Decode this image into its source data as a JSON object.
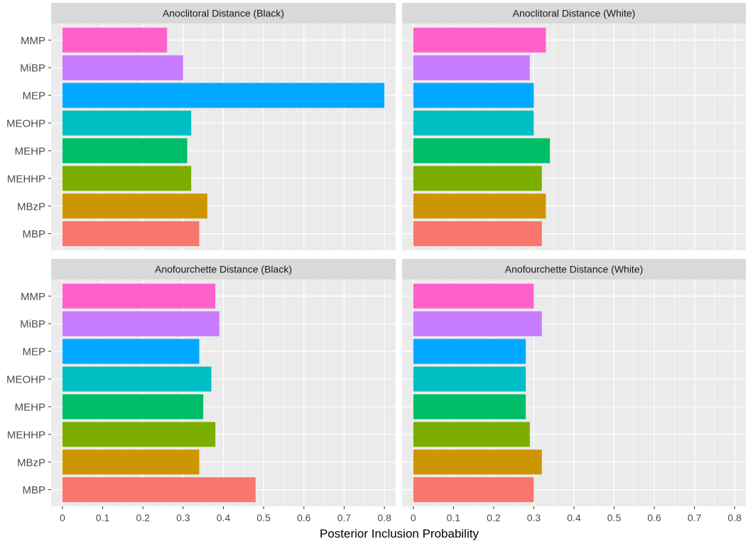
{
  "chart_data": {
    "type": "bar",
    "orientation": "horizontal",
    "xlabel": "Posterior Inclusion Probability",
    "xlim": [
      0,
      0.8
    ],
    "x_ticks": [
      "0",
      "0.1",
      "0.2",
      "0.3",
      "0.4",
      "0.5",
      "0.6",
      "0.7",
      "0.8"
    ],
    "categories": [
      "MMP",
      "MiBP",
      "MEP",
      "MEOHP",
      "MEHP",
      "MEHHP",
      "MBzP",
      "MBP"
    ],
    "category_colors": [
      "#FF61CC",
      "#C77CFF",
      "#00A9FF",
      "#00BFC4",
      "#00BE67",
      "#7CAE00",
      "#CD9600",
      "#F8766D"
    ],
    "panels": [
      {
        "title": "Anoclitoral Distance (Black)",
        "values": [
          0.26,
          0.3,
          0.8,
          0.32,
          0.31,
          0.32,
          0.36,
          0.34
        ]
      },
      {
        "title": "Anoclitoral Distance (White)",
        "values": [
          0.33,
          0.29,
          0.3,
          0.3,
          0.34,
          0.32,
          0.33,
          0.32
        ]
      },
      {
        "title": "Anofourchette Distance (Black)",
        "values": [
          0.38,
          0.39,
          0.34,
          0.37,
          0.35,
          0.38,
          0.34,
          0.48
        ]
      },
      {
        "title": "Anofourchette Distance (White)",
        "values": [
          0.3,
          0.32,
          0.28,
          0.28,
          0.28,
          0.29,
          0.32,
          0.3
        ]
      }
    ],
    "colors": {
      "panel_bg": "#EBEBEB",
      "strip_bg": "#D9D9D9",
      "grid": "#FFFFFF",
      "text": "#1A1A1A",
      "tick_text": "#4D4D4D"
    }
  }
}
